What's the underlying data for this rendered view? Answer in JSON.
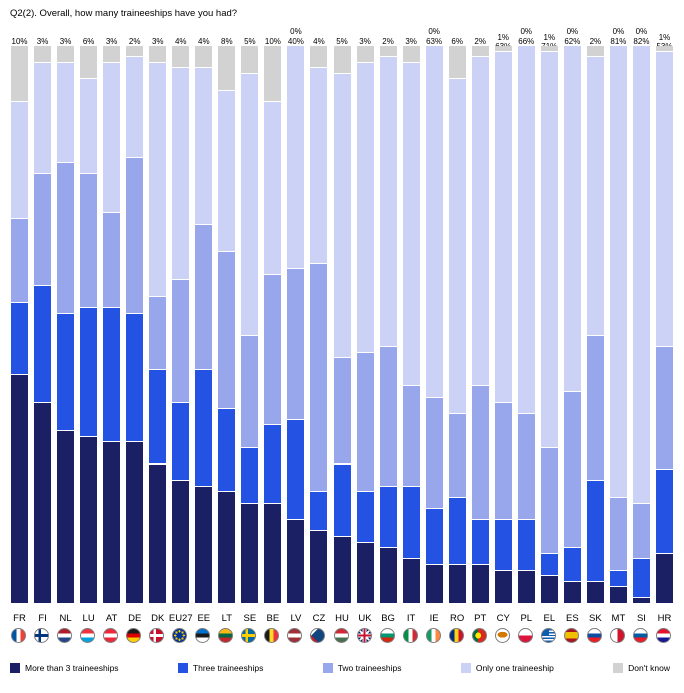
{
  "title": "Q2(2). Overall, how many traineeships have you had?",
  "chart_data": {
    "type": "bar",
    "stacked": true,
    "percent": true,
    "unit": "%",
    "ylim": [
      0,
      100
    ],
    "grid": false,
    "legend_position": "bottom",
    "categories": [
      "FR",
      "FI",
      "NL",
      "LU",
      "AT",
      "DE",
      "DK",
      "EU27",
      "EE",
      "LT",
      "SE",
      "BE",
      "LV",
      "CZ",
      "HU",
      "UK",
      "BG",
      "IT",
      "IE",
      "RO",
      "PT",
      "CY",
      "PL",
      "EL",
      "ES",
      "SK",
      "MT",
      "SI",
      "HR"
    ],
    "series": [
      {
        "name": "More than 3 traineeships",
        "color": "#1B2064",
        "values": [
          41,
          36,
          31,
          30,
          29,
          29,
          25,
          22,
          21,
          20,
          18,
          18,
          15,
          13,
          12,
          11,
          10,
          8,
          7,
          7,
          7,
          6,
          6,
          5,
          4,
          4,
          3,
          1,
          9
        ]
      },
      {
        "name": "Three traineeships",
        "color": "#2453E3",
        "values": [
          13,
          21,
          21,
          23,
          24,
          23,
          17,
          14,
          21,
          15,
          10,
          14,
          18,
          7,
          13,
          9,
          11,
          13,
          10,
          12,
          8,
          9,
          9,
          4,
          6,
          18,
          3,
          7,
          15
        ]
      },
      {
        "name": "Two traineeships",
        "color": "#98A6EC",
        "values": [
          15,
          20,
          27,
          24,
          17,
          28,
          13,
          22,
          26,
          28,
          20,
          27,
          27,
          41,
          19,
          25,
          25,
          18,
          20,
          15,
          24,
          21,
          19,
          19,
          28,
          26,
          13,
          10,
          22
        ]
      },
      {
        "name": "Only one traineeship",
        "color": "#CBD2F5",
        "values": [
          21,
          20,
          18,
          17,
          27,
          18,
          42,
          38,
          28,
          29,
          47,
          31,
          40,
          35,
          51,
          52,
          52,
          58,
          63,
          60,
          59,
          63,
          66,
          71,
          62,
          50,
          81,
          82,
          53
        ]
      },
      {
        "name": "Don't know",
        "color": "#D2D2D2",
        "values": [
          10,
          3,
          3,
          6,
          3,
          2,
          3,
          4,
          4,
          8,
          5,
          10,
          0,
          4,
          5,
          3,
          2,
          3,
          0,
          6,
          2,
          1,
          0,
          1,
          0,
          2,
          0,
          0,
          1
        ]
      }
    ]
  },
  "countries": [
    {
      "code": "FR",
      "flag": {
        "t": "v",
        "c": [
          "#0055A4",
          "#FFFFFF",
          "#EF4135"
        ]
      }
    },
    {
      "code": "FI",
      "flag": {
        "t": "cross",
        "bg": "#FFFFFF",
        "cross": "#003580"
      }
    },
    {
      "code": "NL",
      "flag": {
        "t": "h",
        "c": [
          "#AE1C28",
          "#FFFFFF",
          "#21468B"
        ]
      }
    },
    {
      "code": "LU",
      "flag": {
        "t": "h",
        "c": [
          "#EF3340",
          "#FFFFFF",
          "#00A3E0"
        ]
      }
    },
    {
      "code": "AT",
      "flag": {
        "t": "h",
        "c": [
          "#ED2939",
          "#FFFFFF",
          "#ED2939"
        ]
      }
    },
    {
      "code": "DE",
      "flag": {
        "t": "h",
        "c": [
          "#1A1A1A",
          "#DD0000",
          "#FFCE00"
        ]
      }
    },
    {
      "code": "DK",
      "flag": {
        "t": "cross",
        "bg": "#C8102E",
        "cross": "#FFFFFF"
      }
    },
    {
      "code": "EU27",
      "flag": {
        "t": "eu",
        "bg": "#003399",
        "star": "#FFCC00"
      }
    },
    {
      "code": "EE",
      "flag": {
        "t": "h",
        "c": [
          "#0072CE",
          "#1A1A1A",
          "#FFFFFF"
        ]
      }
    },
    {
      "code": "LT",
      "flag": {
        "t": "h",
        "c": [
          "#FDB913",
          "#006A44",
          "#C1272D"
        ]
      }
    },
    {
      "code": "SE",
      "flag": {
        "t": "cross",
        "bg": "#006AA7",
        "cross": "#FECC02"
      }
    },
    {
      "code": "BE",
      "flag": {
        "t": "v",
        "c": [
          "#1A1A1A",
          "#FDDA24",
          "#EF3340"
        ]
      }
    },
    {
      "code": "LV",
      "flag": {
        "t": "h",
        "c": [
          "#9E3039",
          "#FFFFFF",
          "#9E3039"
        ]
      }
    },
    {
      "code": "CZ",
      "flag": {
        "t": "cz",
        "top": "#FFFFFF",
        "bottom": "#D7141A",
        "tri": "#11457E"
      }
    },
    {
      "code": "HU",
      "flag": {
        "t": "h",
        "c": [
          "#CE2939",
          "#FFFFFF",
          "#477050"
        ]
      }
    },
    {
      "code": "UK",
      "flag": {
        "t": "uk",
        "bg": "#012169",
        "cross": "#C8102E",
        "diag": "#FFFFFF"
      }
    },
    {
      "code": "BG",
      "flag": {
        "t": "h",
        "c": [
          "#FFFFFF",
          "#00966E",
          "#D62612"
        ]
      }
    },
    {
      "code": "IT",
      "flag": {
        "t": "v",
        "c": [
          "#009246",
          "#FFFFFF",
          "#CE2B37"
        ]
      }
    },
    {
      "code": "IE",
      "flag": {
        "t": "v",
        "c": [
          "#169B62",
          "#FFFFFF",
          "#FF883E"
        ]
      }
    },
    {
      "code": "RO",
      "flag": {
        "t": "v",
        "c": [
          "#002B7F",
          "#FCD116",
          "#CE1126"
        ]
      }
    },
    {
      "code": "PT",
      "flag": {
        "t": "pt",
        "left": "#046A38",
        "right": "#DA291C",
        "dot": "#FFE900"
      }
    },
    {
      "code": "CY",
      "flag": {
        "t": "cy",
        "bg": "#FFFFFF",
        "shape": "#D57800"
      }
    },
    {
      "code": "PL",
      "flag": {
        "t": "h",
        "c": [
          "#FFFFFF",
          "#DC143C"
        ],
        "stops": [
          50
        ]
      }
    },
    {
      "code": "EL",
      "flag": {
        "t": "el",
        "blue": "#0D5EAF",
        "white": "#FFFFFF"
      }
    },
    {
      "code": "ES",
      "flag": {
        "t": "h",
        "c": [
          "#AA151B",
          "#F1BF00",
          "#AA151B"
        ],
        "stops": [
          25,
          75
        ]
      }
    },
    {
      "code": "SK",
      "flag": {
        "t": "h",
        "c": [
          "#FFFFFF",
          "#0B4EA2",
          "#EE1C25"
        ]
      }
    },
    {
      "code": "MT",
      "flag": {
        "t": "v",
        "c": [
          "#FFFFFF",
          "#CF142B"
        ],
        "stops": [
          50
        ]
      }
    },
    {
      "code": "SI",
      "flag": {
        "t": "h",
        "c": [
          "#FFFFFF",
          "#005DA4",
          "#ED1C24"
        ]
      }
    },
    {
      "code": "HR",
      "flag": {
        "t": "h",
        "c": [
          "#E8112D",
          "#FFFFFF",
          "#171796"
        ]
      }
    }
  ]
}
